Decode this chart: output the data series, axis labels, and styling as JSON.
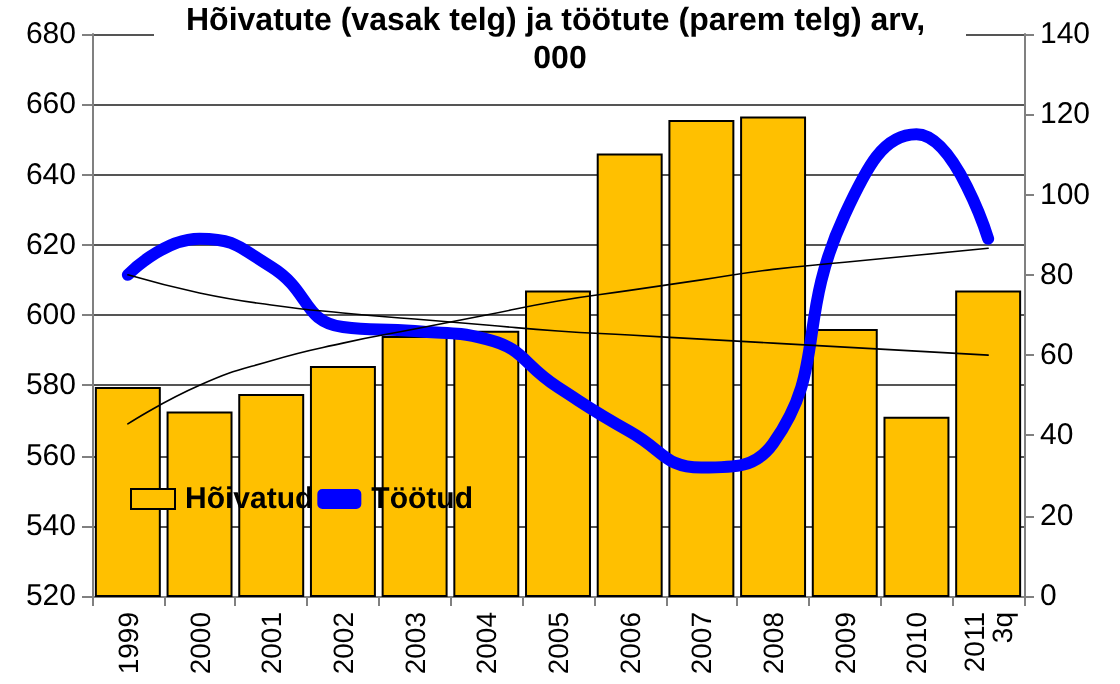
{
  "chart_data": {
    "type": "bar",
    "title": "Hõivatute (vasak telg) ja töötute (parem telg) arv, 000",
    "categories": [
      "1999",
      "2000",
      "2001",
      "2002",
      "2003",
      "2004",
      "2005",
      "2006",
      "2007",
      "2008",
      "2009",
      "2010",
      "2011\n3q"
    ],
    "series": [
      {
        "name": "Hõivatud",
        "color": "#ffc000",
        "values": [
          579.5,
          572.5,
          577.5,
          585.5,
          594,
          595.5,
          607,
          646,
          655.5,
          656.5,
          596,
          571,
          607
        ]
      },
      {
        "name": "Töötud",
        "type": "line",
        "axis": "y2",
        "color": "#0000ff",
        "values": [
          80,
          89,
          82,
          67,
          66,
          64,
          52,
          41,
          32,
          38,
          95,
          115,
          89
        ]
      },
      {
        "type": "line",
        "color": "#000000",
        "values": [
          569,
          580,
          587,
          592,
          596,
          600,
          604,
          607,
          610,
          613,
          615,
          617,
          619
        ]
      },
      {
        "type": "line",
        "axis": "y2",
        "color": "#000000",
        "values": [
          80,
          75.5,
          72.5,
          70.5,
          69,
          67.5,
          66,
          65,
          64,
          63,
          62,
          61,
          60
        ]
      }
    ],
    "ylim": [
      520,
      680
    ],
    "yticks": [
      520,
      540,
      560,
      580,
      600,
      620,
      640,
      660,
      680
    ],
    "y2lim": [
      0,
      140
    ],
    "y2ticks": [
      0,
      20,
      40,
      60,
      80,
      100,
      120,
      140
    ],
    "grid": "y",
    "legend": "bottom left",
    "marker": "none"
  }
}
